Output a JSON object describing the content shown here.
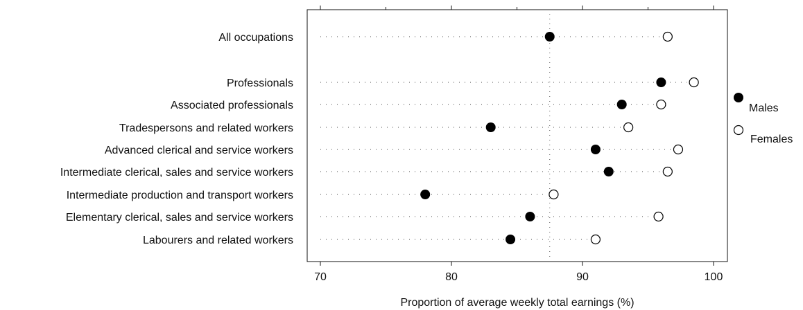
{
  "chart_data": {
    "type": "scatter",
    "title": "",
    "xlabel": "Proportion of average weekly total earnings (%)",
    "ylabel": "",
    "xlim": [
      69.5,
      101.2
    ],
    "xticks": [
      70,
      80,
      90,
      100
    ],
    "grid": false,
    "legend_position": "right",
    "categories": [
      "All occupations",
      "Professionals",
      "Associated professionals",
      "Tradespersons and related workers",
      "Advanced clerical and service workers",
      "Intermediate clerical, sales and service workers",
      "Intermediate production and transport workers",
      "Elementary clerical, sales and service workers",
      "Labourers and related workers"
    ],
    "series": [
      {
        "name": "Males",
        "marker": "filled-circle",
        "color": "#000000",
        "values": [
          87.5,
          96.0,
          93.0,
          83.0,
          91.0,
          92.0,
          78.0,
          86.0,
          84.5
        ]
      },
      {
        "name": "Females",
        "marker": "open-circle",
        "color": "#000000",
        "values": [
          96.5,
          98.5,
          96.0,
          93.5,
          97.3,
          96.5,
          87.8,
          95.8,
          91.0
        ]
      }
    ]
  },
  "colors": {
    "ink": "#111111",
    "dots": "#444444"
  }
}
